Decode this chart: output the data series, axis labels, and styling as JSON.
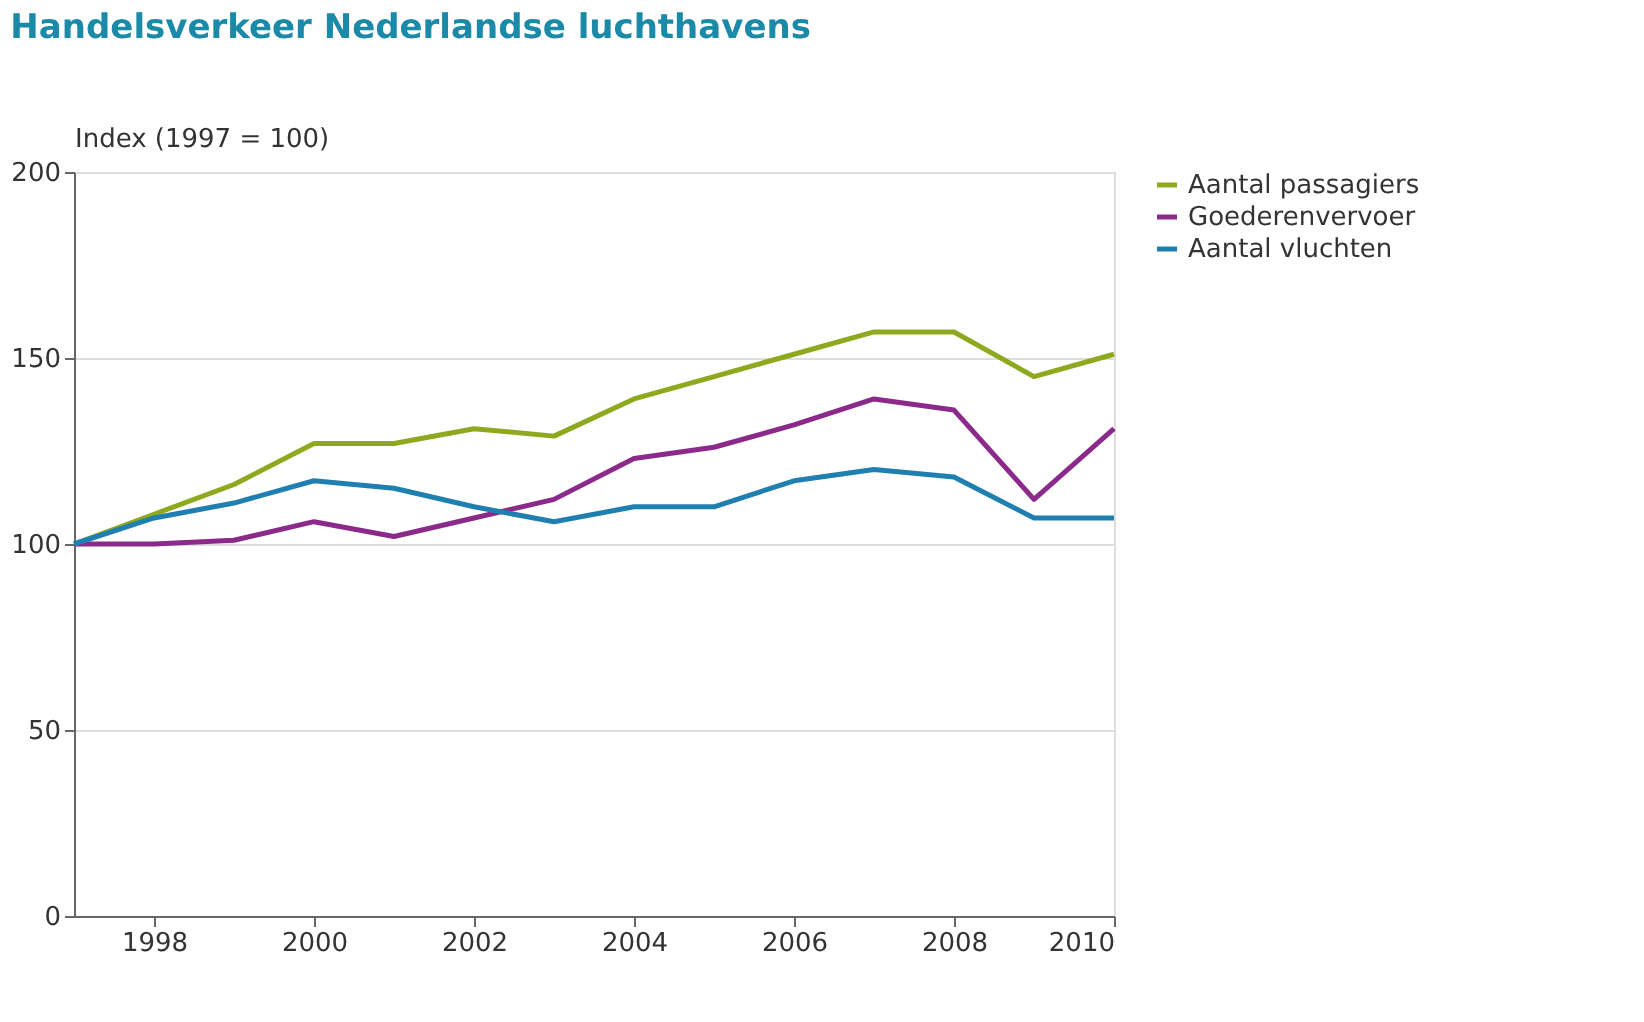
{
  "chart_data": {
    "type": "line",
    "title": "Handelsverkeer Nederlandse luchthavens",
    "ylabel": "Index (1997 = 100)",
    "x": [
      1997,
      1998,
      1999,
      2000,
      2001,
      2002,
      2003,
      2004,
      2005,
      2006,
      2007,
      2008,
      2009,
      2010
    ],
    "series": [
      {
        "name": "Aantal passagiers",
        "color": "#8ea91e",
        "values": [
          100,
          108,
          116,
          127,
          127,
          131,
          129,
          139,
          145,
          151,
          157,
          157,
          145,
          151
        ]
      },
      {
        "name": "Goederenvervoer",
        "color": "#8c2a8c",
        "values": [
          100,
          100,
          101,
          106,
          102,
          107,
          112,
          123,
          126,
          132,
          139,
          136,
          112,
          131
        ]
      },
      {
        "name": "Aantal vluchten",
        "color": "#1f7fb0",
        "values": [
          100,
          107,
          111,
          117,
          115,
          110,
          106,
          110,
          110,
          117,
          120,
          118,
          107,
          107
        ]
      }
    ],
    "xlim": [
      1997,
      2010
    ],
    "xticks": [
      1998,
      2000,
      2002,
      2004,
      2006,
      2008,
      2010
    ],
    "ylim": [
      0,
      200
    ],
    "yticks": [
      0,
      50,
      100,
      150,
      200
    ],
    "grid": "y",
    "legend": "right",
    "line_style": "solid",
    "marker": "none"
  }
}
